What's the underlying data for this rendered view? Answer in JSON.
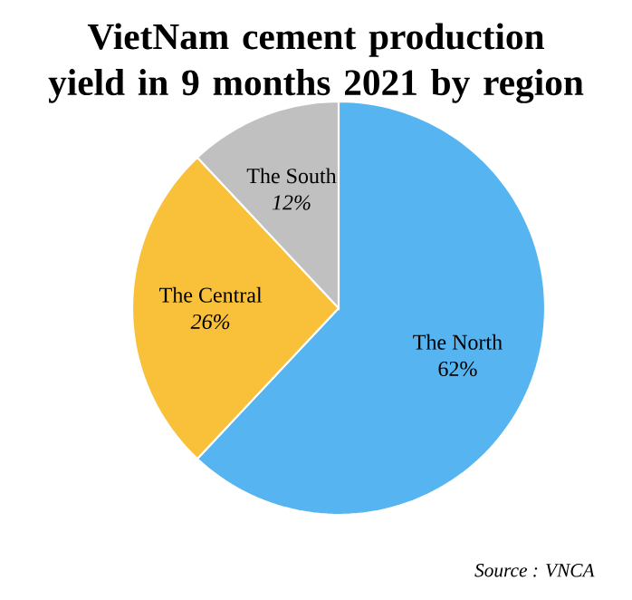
{
  "chart_data": {
    "type": "pie",
    "title": "VietNam cement production yield in 9 months 2021 by region",
    "categories": [
      "The North",
      "The Central",
      "The South"
    ],
    "values": [
      62,
      26,
      12
    ],
    "value_labels": [
      "62%",
      "26%",
      "12%"
    ],
    "colors": [
      "#56b4f0",
      "#f9c03a",
      "#c0c0c0"
    ],
    "annotations": [
      "Source : VNCA"
    ]
  }
}
